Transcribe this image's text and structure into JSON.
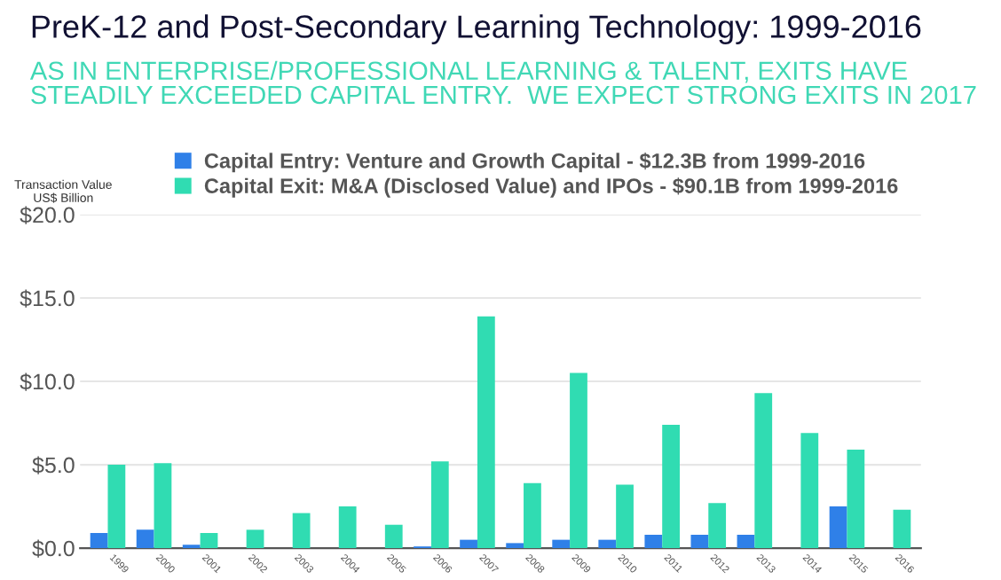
{
  "chart_data": {
    "type": "bar",
    "title": "PreK-12 and Post-Secondary Learning Technology: 1999-2016",
    "subtitle": "AS IN ENTERPRISE/PROFESSIONAL LEARNING & TALENT, EXITS HAVE\nSTEADILY EXCEEDED CAPITAL ENTRY.  WE EXPECT STRONG EXITS IN 2017",
    "ylabel": "Transaction Value\nUS$ Billion",
    "categories": [
      "1999",
      "2000",
      "2001",
      "2002",
      "2003",
      "2004",
      "2005",
      "2006",
      "2007",
      "2008",
      "2009",
      "2010",
      "2011",
      "2012",
      "2013",
      "2014",
      "2015",
      "2016"
    ],
    "series": [
      {
        "name": "Capital Entry: Venture and Growth Capital - $12.3B from 1999-2016",
        "color": "#2f80e8",
        "values": [
          0.9,
          1.1,
          0.2,
          0,
          0,
          0,
          0,
          0.1,
          0.5,
          0.3,
          0.5,
          0.5,
          0.8,
          0.8,
          0.8,
          null,
          2.5,
          null
        ]
      },
      {
        "name": "Capital Exit: M&A (Disclosed Value) and IPOs - $90.1B from 1999-2016",
        "color": "#30dcb2",
        "values": [
          5.0,
          5.1,
          0.9,
          1.1,
          2.1,
          2.5,
          1.4,
          5.2,
          13.9,
          3.9,
          10.5,
          3.8,
          7.4,
          2.7,
          9.3,
          6.9,
          5.9,
          2.3
        ]
      }
    ],
    "ylim": [
      0,
      20
    ],
    "yticks": [
      {
        "value": 0,
        "label": "$0.0"
      },
      {
        "value": 5,
        "label": "$5.0"
      },
      {
        "value": 10,
        "label": "$10.0"
      },
      {
        "value": 15,
        "label": "$15.0"
      },
      {
        "value": 20,
        "label": "$20.0"
      }
    ],
    "grid": "y",
    "legend": "top left"
  }
}
